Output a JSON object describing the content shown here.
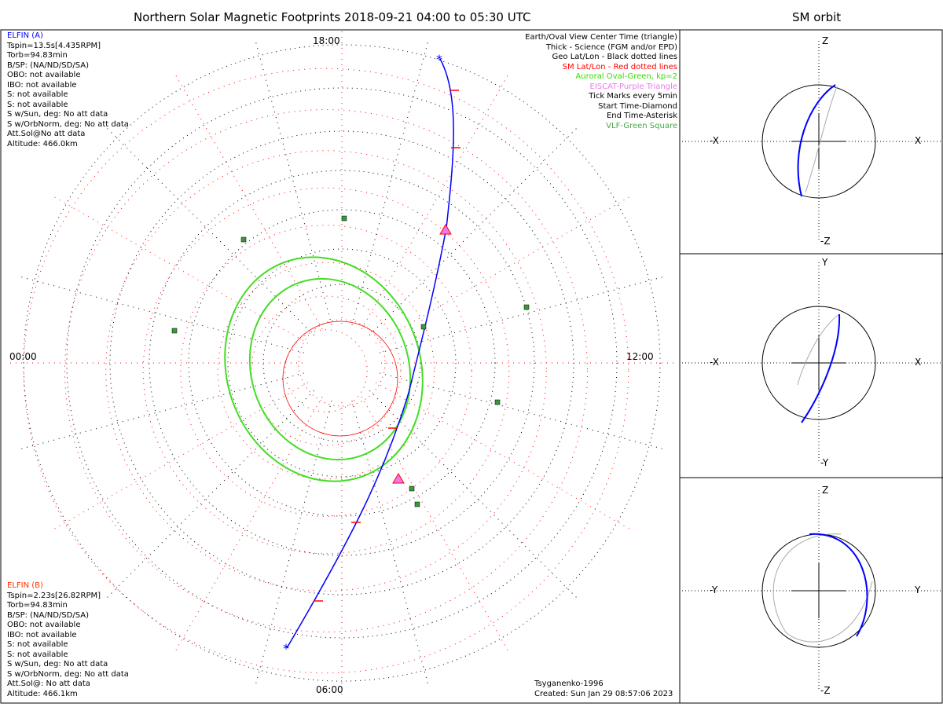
{
  "title": "Northern Solar Magnetic Footprints 2018-09-21 04:00 to 05:30 UTC",
  "sm_title": "SM orbit",
  "time_labels": {
    "top": "18:00",
    "left": "00:00",
    "right": "12:00",
    "bottom": "06:00"
  },
  "elfin_a": {
    "name": "ELFIN (A)",
    "lines": [
      "Tspin=13.5s[4.435RPM]",
      "Torb=94.83min",
      "B/SP: (NA/ND/SD/SA)",
      "OBO: not available",
      "IBO: not available",
      "S: not available",
      "S: not available",
      "S w/Sun, deg: No att data",
      "S w/OrbNorm, deg: No att data",
      "Att.Sol@No att data",
      "Altitude: 466.0km"
    ],
    "color": "#0000ff"
  },
  "elfin_b": {
    "name": "ELFIN (B)",
    "lines": [
      "Tspin=2.23s[26.82RPM]",
      "Torb=94.83min",
      "B/SP: (NA/ND/SD/SA)",
      "OBO: not available",
      "IBO: not available",
      "S: not available",
      "S: not available",
      "S w/Sun, deg: No att data",
      "S w/OrbNorm, deg: No att data",
      "Att.Sol@: No att data",
      "Altitude: 466.1km"
    ],
    "color": "#ff3300"
  },
  "legend": [
    {
      "text": "Earth/Oval View Center Time (triangle)",
      "color": "#000000"
    },
    {
      "text": "Thick - Science (FGM and/or EPD)",
      "color": "#000000"
    },
    {
      "text": "Geo Lat/Lon - Black dotted lines",
      "color": "#000000"
    },
    {
      "text": "SM Lat/Lon - Red dotted lines",
      "color": "#ff0000"
    },
    {
      "text": "Auroral Oval-Green, kp=2",
      "color": "#33dd00"
    },
    {
      "text": "EISCAT-Purple Triangle",
      "color": "#ee77ee"
    },
    {
      "text": "Tick Marks every 5min",
      "color": "#000000"
    },
    {
      "text": "Start Time-Diamond",
      "color": "#000000"
    },
    {
      "text": "End Time-Asterisk",
      "color": "#000000"
    },
    {
      "text": "VLF-Green Square",
      "color": "#44aa44"
    }
  ],
  "footer": {
    "model": "Tsyganenko-1996",
    "created": "Created: Sun Jan 29 08:57:06 2023"
  },
  "sm_panels": [
    {
      "top": "Z",
      "bottom": "-Z",
      "left": "-X",
      "right": "X"
    },
    {
      "top": "Y",
      "bottom": "-Y",
      "left": "-X",
      "right": "X"
    },
    {
      "top": "Z",
      "bottom": "-Z",
      "left": "-Y",
      "right": "Y"
    }
  ],
  "chart_data": {
    "type": "polar-map",
    "center": "north magnetic pole",
    "sm_lat_circles_deg": [
      90,
      80,
      70,
      60,
      50,
      40,
      30,
      20
    ],
    "orbit_color": "#0000ff",
    "auroral_oval_kp": 2,
    "vlf_sites": 8
  }
}
